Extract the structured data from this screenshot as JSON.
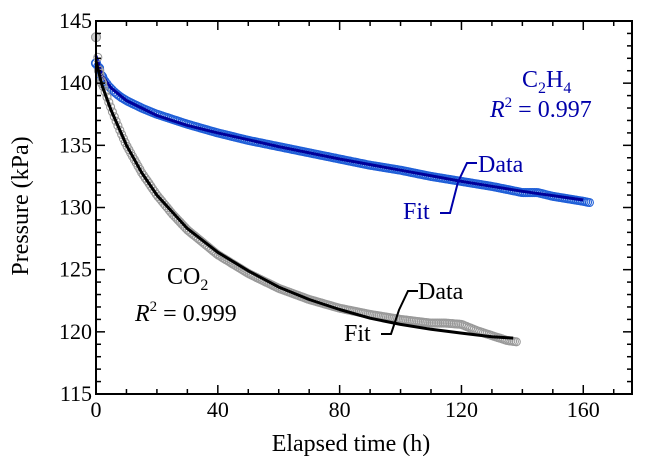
{
  "chart_data": {
    "type": "scatter",
    "title": "",
    "xlabel": "Elapsed time (h)",
    "ylabel": "Pressure (kPa)",
    "xlim": [
      0,
      176
    ],
    "ylim": [
      115,
      145
    ],
    "xticks": [
      0,
      40,
      80,
      120,
      160
    ],
    "yticks": [
      115,
      120,
      125,
      130,
      135,
      140,
      145
    ],
    "grid": false,
    "series": [
      {
        "name": "C2H4",
        "color": "#1f5fd8",
        "fit_color": "#00009a",
        "r2": "0.997",
        "data_x": [
          0,
          1,
          2,
          4,
          6,
          8,
          10,
          15,
          20,
          25,
          30,
          40,
          50,
          60,
          70,
          80,
          90,
          100,
          110,
          120,
          130,
          140,
          145,
          150,
          155,
          160,
          162
        ],
        "data_y": [
          141.6,
          141.2,
          140.5,
          139.8,
          139.3,
          138.9,
          138.6,
          138.0,
          137.5,
          137.1,
          136.7,
          136.0,
          135.4,
          134.9,
          134.4,
          133.9,
          133.4,
          133.0,
          132.5,
          132.1,
          131.7,
          131.2,
          131.2,
          130.9,
          130.7,
          130.5,
          130.4
        ],
        "fit_x": [
          0,
          2,
          5,
          10,
          20,
          30,
          40,
          60,
          80,
          100,
          120,
          140,
          160
        ],
        "fit_y": [
          142.2,
          140.6,
          139.6,
          138.6,
          137.4,
          136.6,
          136.0,
          134.9,
          133.9,
          133.0,
          132.1,
          131.3,
          130.6
        ]
      },
      {
        "name": "CO2",
        "color": "#9a9a9a",
        "fit_color": "#000000",
        "r2": "0.999",
        "data_x": [
          0,
          1,
          2,
          4,
          6,
          8,
          10,
          15,
          20,
          25,
          30,
          40,
          50,
          60,
          70,
          80,
          90,
          100,
          110,
          115,
          120,
          125,
          130,
          135,
          138
        ],
        "data_y": [
          143.7,
          141.0,
          140.0,
          138.6,
          137.3,
          136.1,
          135.0,
          132.8,
          131.0,
          129.5,
          128.2,
          126.2,
          124.7,
          123.5,
          122.6,
          121.9,
          121.4,
          121.0,
          120.7,
          120.7,
          120.6,
          120.1,
          119.7,
          119.3,
          119.2
        ],
        "fit_x": [
          0,
          2,
          5,
          10,
          15,
          20,
          30,
          40,
          50,
          60,
          70,
          80,
          90,
          100,
          110,
          120,
          130,
          137
        ],
        "fit_y": [
          141.8,
          139.8,
          137.8,
          135.0,
          132.8,
          131.0,
          128.3,
          126.4,
          124.9,
          123.6,
          122.6,
          121.8,
          121.1,
          120.6,
          120.2,
          119.9,
          119.6,
          119.5
        ]
      }
    ],
    "annotations": {
      "c2h4": {
        "formula_main": "C",
        "sub1": "2",
        "mid": "H",
        "sub2": "4",
        "r2_letter": "R",
        "r2_exp": "2",
        "r2_value": " = 0.997",
        "data_label": "Data",
        "fit_label": "Fit"
      },
      "co2": {
        "formula_main": "CO",
        "sub1": "2",
        "r2_letter": "R",
        "r2_exp": "2",
        "r2_value": " = 0.999",
        "data_label": "Data",
        "fit_label": "Fit"
      }
    }
  }
}
